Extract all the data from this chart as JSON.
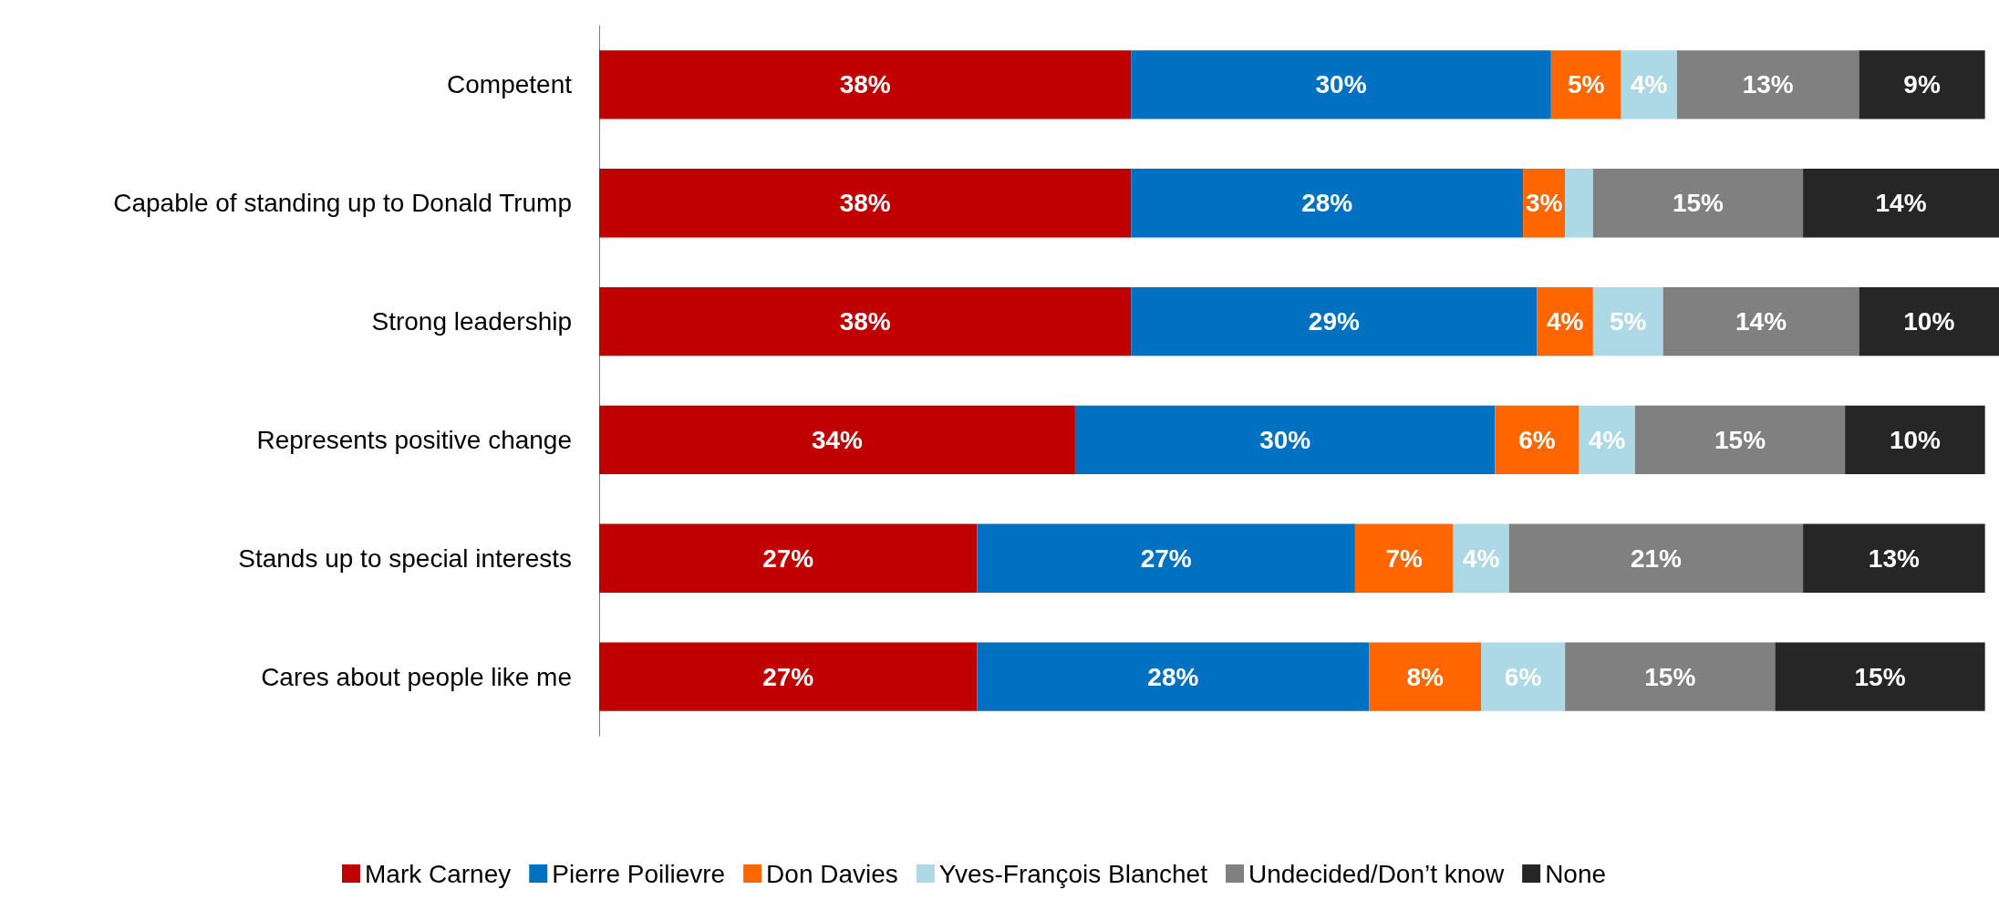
{
  "chart_data": {
    "type": "bar",
    "orientation": "horizontal",
    "stacked": true,
    "legend": "bottom",
    "tick_labels": "y",
    "categories": [
      "Competent",
      "Capable of standing up to Donald Trump",
      "Strong leadership",
      "Represents positive change",
      "Stands up to special interests",
      "Cares about people like me"
    ],
    "series": [
      {
        "name": "Mark Carney",
        "color": "#c00000",
        "values": [
          38,
          38,
          38,
          34,
          27,
          27
        ],
        "value_labels": [
          "38%",
          "38%",
          "38%",
          "34%",
          "27%",
          "27%"
        ]
      },
      {
        "name": "Pierre Poilievre",
        "color": "#0070c0",
        "values": [
          30,
          28,
          29,
          30,
          27,
          28
        ],
        "value_labels": [
          "30%",
          "28%",
          "29%",
          "30%",
          "27%",
          "28%"
        ]
      },
      {
        "name": "Don Davies",
        "color": "#ff6600",
        "values": [
          5,
          3,
          4,
          6,
          7,
          8
        ],
        "value_labels": [
          "5%",
          "3%",
          "4%",
          "6%",
          "7%",
          "8%"
        ]
      },
      {
        "name": "Yves-François Blanchet",
        "color": "#add8e6",
        "values": [
          4,
          2,
          5,
          4,
          4,
          6
        ],
        "value_labels": [
          "4%",
          null,
          "5%",
          "4%",
          "4%",
          "6%"
        ]
      },
      {
        "name": "Undecided/Don’t know",
        "color": "#808080",
        "values": [
          13,
          15,
          14,
          15,
          21,
          15
        ],
        "value_labels": [
          "13%",
          "15%",
          "14%",
          "15%",
          "21%",
          "15%"
        ]
      },
      {
        "name": "None",
        "color": "#262626",
        "values": [
          9,
          14,
          10,
          10,
          13,
          15
        ],
        "value_labels": [
          "9%",
          "14%",
          "10%",
          "10%",
          "13%",
          "15%"
        ]
      }
    ]
  }
}
